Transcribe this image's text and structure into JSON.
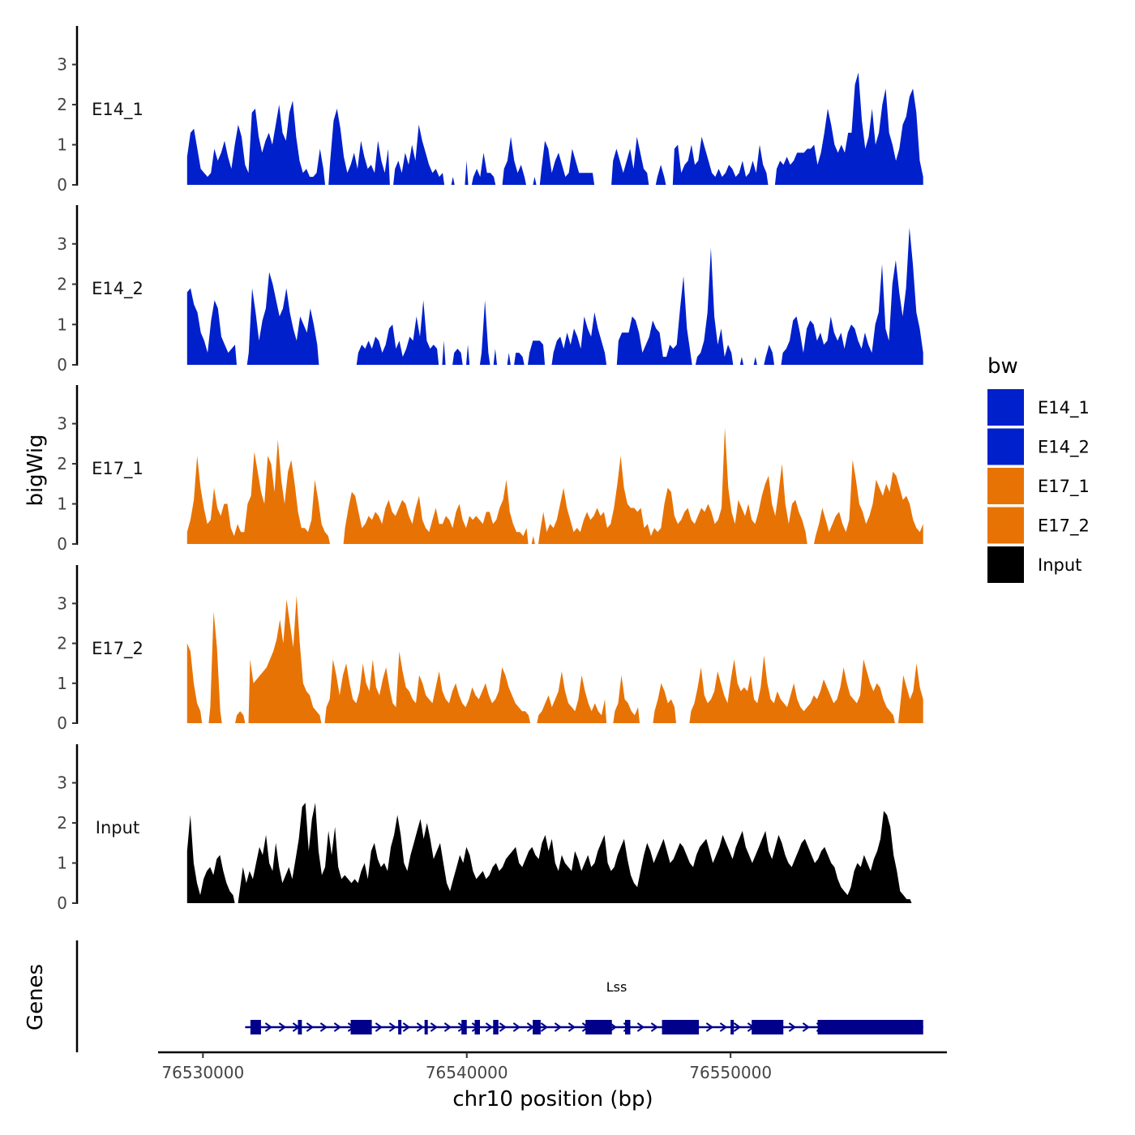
{
  "chart_data": {
    "type": "area",
    "title": "",
    "xlabel": "chr10 position (bp)",
    "ylabel": "bigWig",
    "genes_label": "Genes",
    "x_range": [
      76529400,
      76557300
    ],
    "xlim": [
      76528300,
      76558200
    ],
    "x_ticks": [
      76530000,
      76540000,
      76550000
    ],
    "x_tick_labels": [
      "76530000",
      "76540000",
      "76550000"
    ],
    "ylim": [
      0,
      3.8
    ],
    "y_ticks": [
      0,
      1,
      2,
      3
    ],
    "y_tick_labels": [
      "0",
      "1",
      "2",
      "3"
    ],
    "legend": {
      "title": "bw",
      "position": "right",
      "entries": [
        {
          "label": "E14_1",
          "color": "#0020CC"
        },
        {
          "label": "E14_2",
          "color": "#0020CC"
        },
        {
          "label": "E17_1",
          "color": "#E87305"
        },
        {
          "label": "E17_2",
          "color": "#E87305"
        },
        {
          "label": "Input",
          "color": "#000000"
        }
      ]
    },
    "series": [
      {
        "name": "E14_1",
        "color": "#0020CC",
        "values": [
          0.7,
          1.3,
          1.4,
          0.9,
          0.4,
          0.3,
          0.2,
          0.3,
          0.9,
          0.6,
          0.8,
          1.1,
          0.7,
          0.4,
          1.0,
          1.5,
          1.2,
          0.5,
          0.3,
          1.8,
          1.9,
          1.2,
          0.8,
          1.1,
          1.3,
          1.0,
          1.5,
          2.0,
          1.3,
          1.1,
          1.8,
          2.1,
          1.2,
          0.6,
          0.3,
          0.4,
          0.2,
          0.2,
          0.3,
          0.9,
          0.4,
          0,
          0.6,
          1.6,
          1.9,
          1.4,
          0.7,
          0.3,
          0.5,
          0.8,
          0.4,
          1.1,
          0.7,
          0.4,
          0.5,
          0.3,
          1.1,
          0.6,
          0.3,
          0.9,
          0,
          0.4,
          0.6,
          0.3,
          0.8,
          0.5,
          1.0,
          0.6,
          1.5,
          1.1,
          0.8,
          0.5,
          0.3,
          0.4,
          0.2,
          0.3,
          0,
          0,
          0.2,
          0,
          0,
          0,
          0.6,
          0,
          0.2,
          0.4,
          0.2,
          0.8,
          0.3,
          0.3,
          0.2,
          0,
          0,
          0.4,
          0.6,
          1.2,
          0.6,
          0.3,
          0.5,
          0.2,
          0,
          0,
          0.2,
          0,
          0.4,
          1.1,
          0.9,
          0.3,
          0.6,
          0.8,
          0.5,
          0.2,
          0.3,
          0.9,
          0.6,
          0.3,
          0.3,
          0.3,
          0.3,
          0.3,
          0,
          0,
          0,
          0,
          0,
          0.6,
          0.9,
          0.6,
          0.3,
          0.6,
          0.9,
          0.4,
          1.2,
          0.8,
          0.4,
          0.3,
          0,
          0,
          0.2,
          0.5,
          0.2,
          0,
          0,
          0.9,
          1.0,
          0.3,
          0.5,
          0.6,
          1.0,
          0.5,
          0.6,
          1.2,
          0.9,
          0.6,
          0.3,
          0.2,
          0.4,
          0.2,
          0.3,
          0.5,
          0.4,
          0.2,
          0.3,
          0.6,
          0.2,
          0.3,
          0.6,
          0.3,
          1.0,
          0.5,
          0.3,
          0,
          0,
          0.4,
          0.6,
          0.5,
          0.7,
          0.5,
          0.6,
          0.8,
          0.8,
          0.8,
          0.9,
          0.9,
          1.0,
          0.5,
          0.8,
          1.3,
          1.9,
          1.5,
          1.0,
          0.8,
          1.0,
          0.8,
          1.3,
          1.3,
          2.5,
          2.8,
          1.6,
          0.9,
          1.2,
          1.9,
          1.0,
          1.3,
          2.0,
          2.4,
          1.3,
          1.0,
          0.6,
          0.9,
          1.5,
          1.7,
          2.2,
          2.4,
          1.8,
          0.6,
          0.2
        ]
      },
      {
        "name": "E14_2",
        "color": "#0020CC",
        "values": [
          1.8,
          1.9,
          1.5,
          1.3,
          0.8,
          0.6,
          0.3,
          1.1,
          1.6,
          1.4,
          0.7,
          0.5,
          0.3,
          0.4,
          0.5,
          0,
          0,
          0,
          0.3,
          1.9,
          1.3,
          0.6,
          1.1,
          1.4,
          2.3,
          2.0,
          1.6,
          1.2,
          1.4,
          1.9,
          1.3,
          0.9,
          0.6,
          1.2,
          1.0,
          0.8,
          1.4,
          1.0,
          0.5,
          0,
          0,
          0,
          0,
          0,
          0,
          0,
          0,
          0,
          0,
          0,
          0.3,
          0.5,
          0.4,
          0.6,
          0.4,
          0.7,
          0.6,
          0.3,
          0.5,
          0.9,
          1.0,
          0.4,
          0.6,
          0.2,
          0.4,
          0.7,
          0.6,
          1.2,
          0.7,
          1.6,
          0.6,
          0.4,
          0.5,
          0.4,
          0,
          0.6,
          0,
          0,
          0.3,
          0.4,
          0.3,
          0,
          0.5,
          0,
          0,
          0,
          0.3,
          1.6,
          0.3,
          0,
          0.4,
          0,
          0,
          0,
          0.3,
          0,
          0.3,
          0.3,
          0.2,
          0,
          0.3,
          0.6,
          0.6,
          0.6,
          0.5,
          0,
          0,
          0.3,
          0.6,
          0.7,
          0.4,
          0.8,
          0.5,
          0.9,
          0.7,
          0.4,
          1.2,
          0.9,
          0.7,
          1.3,
          0.9,
          0.6,
          0.3,
          0,
          0,
          0,
          0.6,
          0.8,
          0.8,
          0.8,
          1.2,
          1.1,
          0.8,
          0.3,
          0.5,
          0.7,
          1.1,
          0.9,
          0.8,
          0.2,
          0.2,
          0.5,
          0.4,
          0.5,
          1.4,
          2.2,
          0.9,
          0.3,
          0,
          0.2,
          0.3,
          0.6,
          1.3,
          2.9,
          1.2,
          0.5,
          0.9,
          0.2,
          0.5,
          0.3,
          0,
          0,
          0.2,
          0,
          0,
          0,
          0.2,
          0,
          0,
          0.2,
          0.5,
          0.3,
          0,
          0,
          0.3,
          0.4,
          0.6,
          1.1,
          1.2,
          0.8,
          0.3,
          0.9,
          1.1,
          1.0,
          0.6,
          0.8,
          0.5,
          0.6,
          1.2,
          0.8,
          0.6,
          0.8,
          0.4,
          0.8,
          1.0,
          0.9,
          0.6,
          0.4,
          0.8,
          0.5,
          0.3,
          1.0,
          1.3,
          2.5,
          0.9,
          0.6,
          2.0,
          2.6,
          1.8,
          1.2,
          1.9,
          3.4,
          2.5,
          1.3,
          0.9,
          0.3
        ]
      },
      {
        "name": "E17_1",
        "color": "#E87305",
        "values": [
          0.3,
          0.6,
          1.1,
          2.2,
          1.4,
          0.9,
          0.5,
          0.6,
          1.4,
          0.9,
          0.7,
          1.0,
          1.0,
          0.4,
          0.2,
          0.5,
          0.3,
          0.3,
          1.0,
          1.2,
          2.3,
          1.8,
          1.3,
          1.0,
          2.2,
          2.0,
          1.3,
          2.6,
          1.6,
          1.0,
          1.8,
          2.1,
          1.5,
          0.8,
          0.4,
          0.4,
          0.3,
          0.6,
          1.6,
          1.1,
          0.5,
          0.3,
          0.2,
          0,
          0,
          0,
          0,
          0.4,
          0.9,
          1.3,
          1.2,
          0.8,
          0.4,
          0.5,
          0.7,
          0.6,
          0.8,
          0.7,
          0.5,
          0.9,
          1.1,
          0.8,
          0.7,
          0.9,
          1.1,
          1.0,
          0.7,
          0.5,
          0.9,
          1.2,
          0.6,
          0.4,
          0.3,
          0.6,
          0.9,
          0.5,
          0.5,
          0.7,
          0.6,
          0.4,
          0.8,
          1.0,
          0.6,
          0.4,
          0.7,
          0.6,
          0.7,
          0.6,
          0.5,
          0.8,
          0.8,
          0.5,
          0.6,
          0.9,
          1.1,
          1.6,
          0.8,
          0.5,
          0.3,
          0.3,
          0.2,
          0.4,
          0,
          0.2,
          0,
          0.3,
          0.8,
          0.3,
          0.5,
          0.4,
          0.6,
          1.0,
          1.4,
          0.9,
          0.6,
          0.3,
          0.4,
          0.3,
          0.6,
          0.8,
          0.6,
          0.7,
          0.9,
          0.7,
          0.8,
          0.4,
          0.5,
          0.9,
          1.5,
          2.2,
          1.4,
          1.0,
          0.9,
          0.9,
          0.8,
          0.9,
          0.4,
          0.5,
          0.2,
          0.4,
          0.3,
          0.4,
          1.0,
          1.4,
          1.3,
          0.7,
          0.5,
          0.6,
          0.8,
          0.9,
          0.6,
          0.5,
          0.7,
          0.9,
          0.8,
          1.0,
          0.8,
          0.5,
          0.6,
          0.9,
          2.9,
          1.4,
          0.8,
          0.5,
          1.1,
          0.9,
          0.7,
          1.0,
          0.6,
          0.5,
          0.8,
          1.2,
          1.5,
          1.7,
          1.0,
          0.7,
          1.3,
          2.0,
          1.0,
          0.5,
          1.0,
          1.1,
          0.8,
          0.6,
          0.3,
          0,
          0,
          0.2,
          0.5,
          0.9,
          0.6,
          0.3,
          0.5,
          0.7,
          0.8,
          0.5,
          0.3,
          0.6,
          2.1,
          1.6,
          1.0,
          0.8,
          0.5,
          0.7,
          1.0,
          1.6,
          1.4,
          1.2,
          1.5,
          1.3,
          1.8,
          1.7,
          1.4,
          1.1,
          1.2,
          1.0,
          0.6,
          0.4,
          0.3,
          0.5
        ]
      },
      {
        "name": "E17_2",
        "color": "#E87305",
        "values": [
          2.0,
          1.8,
          1.0,
          0.5,
          0.3,
          0,
          0,
          0.4,
          2.8,
          1.9,
          0.3,
          0,
          0,
          0,
          0,
          0.2,
          0.3,
          0.2,
          0,
          1.6,
          1.0,
          1.1,
          1.2,
          1.3,
          1.4,
          1.6,
          1.8,
          2.1,
          2.6,
          2.0,
          3.1,
          2.5,
          1.9,
          3.2,
          2.0,
          1.0,
          0.8,
          0.7,
          0.4,
          0.3,
          0.2,
          0,
          0.4,
          0.6,
          1.6,
          1.2,
          0.7,
          1.2,
          1.5,
          1.0,
          0.6,
          0.5,
          0.8,
          1.5,
          1.0,
          0.8,
          1.6,
          0.9,
          0.7,
          1.1,
          1.4,
          0.9,
          0.5,
          0.4,
          1.8,
          1.3,
          0.9,
          0.8,
          0.6,
          0.5,
          1.2,
          1.0,
          0.7,
          0.6,
          0.5,
          0.9,
          1.3,
          0.8,
          0.6,
          0.5,
          0.8,
          1.0,
          0.7,
          0.5,
          0.4,
          0.6,
          0.9,
          0.7,
          0.6,
          0.8,
          1.0,
          0.7,
          0.5,
          0.6,
          0.8,
          1.4,
          1.2,
          0.9,
          0.7,
          0.5,
          0.4,
          0.3,
          0.3,
          0.2,
          0,
          0,
          0.2,
          0.3,
          0.5,
          0.7,
          0.4,
          0.6,
          0.8,
          1.3,
          0.8,
          0.5,
          0.4,
          0.3,
          0.6,
          1.2,
          0.8,
          0.5,
          0.3,
          0.5,
          0.3,
          0.2,
          0.6,
          0,
          0,
          0.3,
          0.5,
          1.2,
          0.6,
          0.5,
          0.3,
          0.2,
          0.4,
          0,
          0,
          0,
          0,
          0.3,
          0.6,
          1.0,
          0.8,
          0.5,
          0.6,
          0.4,
          0,
          0,
          0,
          0,
          0.3,
          0.5,
          0.9,
          1.4,
          0.7,
          0.5,
          0.6,
          0.8,
          1.3,
          1.0,
          0.7,
          0.5,
          1.1,
          1.6,
          1.0,
          0.8,
          0.9,
          0.8,
          1.2,
          0.6,
          0.5,
          0.9,
          1.7,
          1.0,
          0.6,
          0.5,
          0.8,
          0.6,
          0.5,
          0.4,
          0.7,
          1.0,
          0.6,
          0.4,
          0.3,
          0.4,
          0.5,
          0.7,
          0.6,
          0.8,
          1.1,
          0.9,
          0.7,
          0.5,
          0.6,
          0.9,
          1.4,
          1.0,
          0.7,
          0.6,
          0.5,
          0.7,
          1.6,
          1.3,
          1.0,
          0.8,
          1.0,
          0.9,
          0.6,
          0.4,
          0.3,
          0.2,
          0,
          0.4,
          1.2,
          0.9,
          0.6,
          0.8,
          1.5,
          0.9,
          0.6
        ]
      },
      {
        "name": "Input",
        "color": "#000000",
        "values": [
          1.3,
          2.2,
          1.0,
          0.5,
          0.2,
          0.6,
          0.8,
          0.9,
          0.7,
          1.1,
          1.2,
          0.8,
          0.5,
          0.3,
          0.2,
          0,
          0.3,
          0.9,
          0.5,
          0.8,
          0.6,
          1.0,
          1.4,
          1.2,
          1.7,
          1.0,
          0.8,
          1.5,
          0.9,
          0.5,
          0.7,
          0.9,
          0.6,
          1.1,
          1.6,
          2.4,
          2.5,
          1.3,
          2.1,
          2.5,
          1.3,
          0.7,
          0.9,
          1.8,
          1.2,
          1.9,
          0.9,
          0.6,
          0.7,
          0.6,
          0.5,
          0.6,
          0.5,
          0.8,
          1.0,
          0.6,
          1.3,
          1.5,
          1.1,
          0.9,
          1.0,
          0.8,
          1.4,
          1.7,
          2.2,
          1.7,
          1.0,
          0.8,
          1.2,
          1.5,
          1.8,
          2.1,
          1.6,
          2.0,
          1.6,
          1.1,
          1.3,
          1.5,
          1.0,
          0.5,
          0.3,
          0.6,
          0.9,
          1.2,
          1.0,
          1.4,
          1.2,
          0.8,
          0.6,
          0.7,
          0.8,
          0.6,
          0.7,
          0.9,
          1.0,
          0.8,
          0.9,
          1.1,
          1.2,
          1.3,
          1.4,
          1.0,
          0.9,
          1.1,
          1.3,
          1.4,
          1.2,
          1.1,
          1.5,
          1.7,
          1.3,
          1.6,
          1.0,
          0.8,
          1.2,
          1.0,
          0.9,
          0.8,
          1.3,
          1.1,
          0.8,
          1.0,
          1.2,
          0.9,
          1.0,
          1.3,
          1.5,
          1.7,
          1.0,
          0.8,
          0.9,
          1.2,
          1.4,
          1.6,
          1.1,
          0.7,
          0.5,
          0.4,
          0.8,
          1.2,
          1.5,
          1.3,
          1.0,
          1.2,
          1.4,
          1.6,
          1.3,
          1.0,
          1.1,
          1.3,
          1.5,
          1.4,
          1.2,
          1.0,
          0.9,
          1.2,
          1.4,
          1.5,
          1.6,
          1.3,
          1.0,
          1.2,
          1.4,
          1.7,
          1.5,
          1.3,
          1.1,
          1.4,
          1.6,
          1.8,
          1.4,
          1.2,
          1.0,
          1.2,
          1.4,
          1.6,
          1.8,
          1.3,
          1.1,
          1.4,
          1.7,
          1.5,
          1.2,
          1.0,
          0.9,
          1.1,
          1.3,
          1.5,
          1.6,
          1.4,
          1.2,
          1.0,
          1.1,
          1.3,
          1.4,
          1.2,
          1.0,
          0.9,
          0.6,
          0.4,
          0.3,
          0.2,
          0.4,
          0.8,
          1.0,
          0.9,
          1.2,
          1.0,
          0.8,
          1.1,
          1.3,
          1.6,
          2.3,
          2.2,
          1.9,
          1.2,
          0.8,
          0.3,
          0.2,
          0.1,
          0.1,
          0,
          0,
          0,
          0
        ]
      }
    ],
    "genes": [
      {
        "name": "Lss",
        "strand": "+",
        "start": 76531600,
        "end": 76557300,
        "exons": [
          [
            76531800,
            76532200
          ],
          [
            76533600,
            76533750
          ],
          [
            76535600,
            76536400
          ],
          [
            76537400,
            76537500
          ],
          [
            76538400,
            76538500
          ],
          [
            76539800,
            76540000
          ],
          [
            76540300,
            76540500
          ],
          [
            76541000,
            76541200
          ],
          [
            76542500,
            76542800
          ],
          [
            76544500,
            76545500
          ],
          [
            76546000,
            76546200
          ],
          [
            76547400,
            76548800
          ],
          [
            76550000,
            76550100
          ],
          [
            76550800,
            76552000
          ],
          [
            76553300,
            76557300
          ]
        ]
      }
    ]
  }
}
